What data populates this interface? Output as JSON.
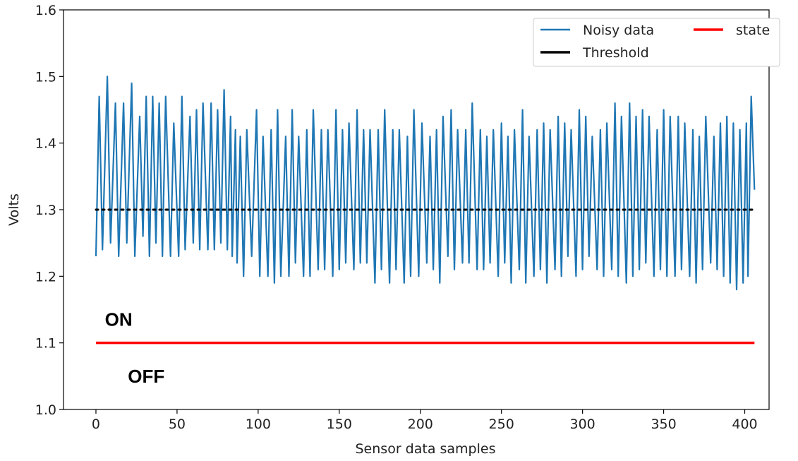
{
  "chart_data": {
    "type": "line",
    "title": "",
    "xlabel": "Sensor data samples",
    "ylabel": "Volts",
    "xlim": [
      -20,
      415
    ],
    "ylim": [
      1.0,
      1.6
    ],
    "xticks": [
      0,
      50,
      100,
      150,
      200,
      250,
      300,
      350,
      400
    ],
    "yticks": [
      1.0,
      1.1,
      1.2,
      1.3,
      1.4,
      1.5,
      1.6
    ],
    "xtick_labels": [
      "0",
      "50",
      "100",
      "150",
      "200",
      "250",
      "300",
      "350",
      "400"
    ],
    "ytick_labels": [
      "1.0",
      "1.1",
      "1.2",
      "1.3",
      "1.4",
      "1.5",
      "1.6"
    ],
    "grid": false,
    "legend_position": "top-right",
    "series": [
      {
        "name": "Noisy data",
        "color": "#1f77b4",
        "style": "solid",
        "x_range": [
          0,
          406
        ],
        "peaks": [
          [
            2,
            1.47
          ],
          [
            7,
            1.5
          ],
          [
            12,
            1.46
          ],
          [
            17,
            1.46
          ],
          [
            22,
            1.49
          ],
          [
            27,
            1.44
          ],
          [
            31,
            1.47
          ],
          [
            35,
            1.47
          ],
          [
            39,
            1.46
          ],
          [
            43,
            1.47
          ],
          [
            48,
            1.43
          ],
          [
            53,
            1.47
          ],
          [
            58,
            1.44
          ],
          [
            62,
            1.45
          ],
          [
            66,
            1.46
          ],
          [
            71,
            1.46
          ],
          [
            75,
            1.45
          ],
          [
            79,
            1.48
          ],
          [
            83,
            1.44
          ],
          [
            86,
            1.42
          ],
          [
            89,
            1.41
          ],
          [
            93,
            1.42
          ],
          [
            99,
            1.45
          ],
          [
            103,
            1.41
          ],
          [
            108,
            1.42
          ],
          [
            112,
            1.45
          ],
          [
            117,
            1.41
          ],
          [
            121,
            1.45
          ],
          [
            125,
            1.41
          ],
          [
            130,
            1.42
          ],
          [
            134,
            1.45
          ],
          [
            139,
            1.42
          ],
          [
            143,
            1.42
          ],
          [
            148,
            1.45
          ],
          [
            152,
            1.42
          ],
          [
            156,
            1.43
          ],
          [
            161,
            1.45
          ],
          [
            165,
            1.42
          ],
          [
            169,
            1.42
          ],
          [
            174,
            1.42
          ],
          [
            178,
            1.45
          ],
          [
            183,
            1.42
          ],
          [
            187,
            1.42
          ],
          [
            192,
            1.41
          ],
          [
            196,
            1.45
          ],
          [
            201,
            1.43
          ],
          [
            206,
            1.41
          ],
          [
            210,
            1.42
          ],
          [
            214,
            1.44
          ],
          [
            219,
            1.45
          ],
          [
            223,
            1.42
          ],
          [
            228,
            1.42
          ],
          [
            232,
            1.46
          ],
          [
            237,
            1.42
          ],
          [
            241,
            1.41
          ],
          [
            245,
            1.42
          ],
          [
            250,
            1.43
          ],
          [
            254,
            1.41
          ],
          [
            258,
            1.42
          ],
          [
            263,
            1.45
          ],
          [
            267,
            1.41
          ],
          [
            272,
            1.42
          ],
          [
            276,
            1.43
          ],
          [
            280,
            1.42
          ],
          [
            285,
            1.44
          ],
          [
            289,
            1.43
          ],
          [
            293,
            1.42
          ],
          [
            298,
            1.45
          ],
          [
            302,
            1.44
          ],
          [
            306,
            1.41
          ],
          [
            311,
            1.42
          ],
          [
            315,
            1.43
          ],
          [
            320,
            1.46
          ],
          [
            324,
            1.44
          ],
          [
            329,
            1.46
          ],
          [
            333,
            1.44
          ],
          [
            337,
            1.45
          ],
          [
            341,
            1.44
          ],
          [
            346,
            1.42
          ],
          [
            350,
            1.45
          ],
          [
            354,
            1.44
          ],
          [
            359,
            1.44
          ],
          [
            363,
            1.43
          ],
          [
            368,
            1.42
          ],
          [
            372,
            1.41
          ],
          [
            376,
            1.44
          ],
          [
            381,
            1.41
          ],
          [
            385,
            1.43
          ],
          [
            389,
            1.44
          ],
          [
            393,
            1.43
          ],
          [
            397,
            1.42
          ],
          [
            401,
            1.43
          ],
          [
            404,
            1.47
          ]
        ],
        "troughs": [
          [
            0,
            1.23
          ],
          [
            4,
            1.24
          ],
          [
            9,
            1.25
          ],
          [
            14,
            1.23
          ],
          [
            19,
            1.25
          ],
          [
            24,
            1.23
          ],
          [
            29,
            1.26
          ],
          [
            33,
            1.23
          ],
          [
            37,
            1.25
          ],
          [
            41,
            1.23
          ],
          [
            46,
            1.23
          ],
          [
            51,
            1.23
          ],
          [
            55,
            1.24
          ],
          [
            60,
            1.25
          ],
          [
            64,
            1.24
          ],
          [
            69,
            1.24
          ],
          [
            73,
            1.24
          ],
          [
            77,
            1.25
          ],
          [
            81,
            1.24
          ],
          [
            84,
            1.23
          ],
          [
            87,
            1.22
          ],
          [
            91,
            1.2
          ],
          [
            96,
            1.23
          ],
          [
            101,
            1.2
          ],
          [
            106,
            1.2
          ],
          [
            110,
            1.19
          ],
          [
            114,
            1.2
          ],
          [
            119,
            1.2
          ],
          [
            123,
            1.22
          ],
          [
            128,
            1.2
          ],
          [
            132,
            1.2
          ],
          [
            137,
            1.21
          ],
          [
            141,
            1.21
          ],
          [
            146,
            1.2
          ],
          [
            150,
            1.21
          ],
          [
            154,
            1.22
          ],
          [
            159,
            1.21
          ],
          [
            163,
            1.22
          ],
          [
            167,
            1.22
          ],
          [
            172,
            1.19
          ],
          [
            176,
            1.21
          ],
          [
            181,
            1.19
          ],
          [
            185,
            1.21
          ],
          [
            190,
            1.19
          ],
          [
            194,
            1.2
          ],
          [
            199,
            1.2
          ],
          [
            204,
            1.22
          ],
          [
            208,
            1.21
          ],
          [
            212,
            1.19
          ],
          [
            217,
            1.23
          ],
          [
            221,
            1.21
          ],
          [
            226,
            1.22
          ],
          [
            230,
            1.22
          ],
          [
            235,
            1.21
          ],
          [
            239,
            1.21
          ],
          [
            243,
            1.22
          ],
          [
            248,
            1.2
          ],
          [
            252,
            1.22
          ],
          [
            256,
            1.19
          ],
          [
            261,
            1.21
          ],
          [
            265,
            1.19
          ],
          [
            270,
            1.2
          ],
          [
            274,
            1.21
          ],
          [
            278,
            1.19
          ],
          [
            283,
            1.21
          ],
          [
            287,
            1.2
          ],
          [
            291,
            1.23
          ],
          [
            296,
            1.2
          ],
          [
            300,
            1.21
          ],
          [
            304,
            1.23
          ],
          [
            309,
            1.21
          ],
          [
            313,
            1.2
          ],
          [
            318,
            1.21
          ],
          [
            322,
            1.2
          ],
          [
            327,
            1.19
          ],
          [
            331,
            1.2
          ],
          [
            335,
            1.21
          ],
          [
            339,
            1.22
          ],
          [
            344,
            1.2
          ],
          [
            348,
            1.21
          ],
          [
            352,
            1.2
          ],
          [
            357,
            1.2
          ],
          [
            361,
            1.21
          ],
          [
            366,
            1.2
          ],
          [
            370,
            1.19
          ],
          [
            374,
            1.21
          ],
          [
            379,
            1.22
          ],
          [
            383,
            1.21
          ],
          [
            387,
            1.2
          ],
          [
            391,
            1.19
          ],
          [
            395,
            1.18
          ],
          [
            399,
            1.19
          ],
          [
            402,
            1.2
          ],
          [
            406,
            1.33
          ]
        ]
      },
      {
        "name": "Threshold",
        "color": "#000000",
        "style": "dotted",
        "x": [
          0,
          406
        ],
        "y": [
          1.3,
          1.3
        ]
      },
      {
        "name": "state",
        "color": "#ff0000",
        "style": "solid",
        "x": [
          0,
          406
        ],
        "y": [
          1.1,
          1.1
        ]
      }
    ],
    "annotations": [
      {
        "text": "ON",
        "x": 14,
        "y": 1.135
      },
      {
        "text": "OFF",
        "x": 31,
        "y": 1.05
      }
    ]
  }
}
